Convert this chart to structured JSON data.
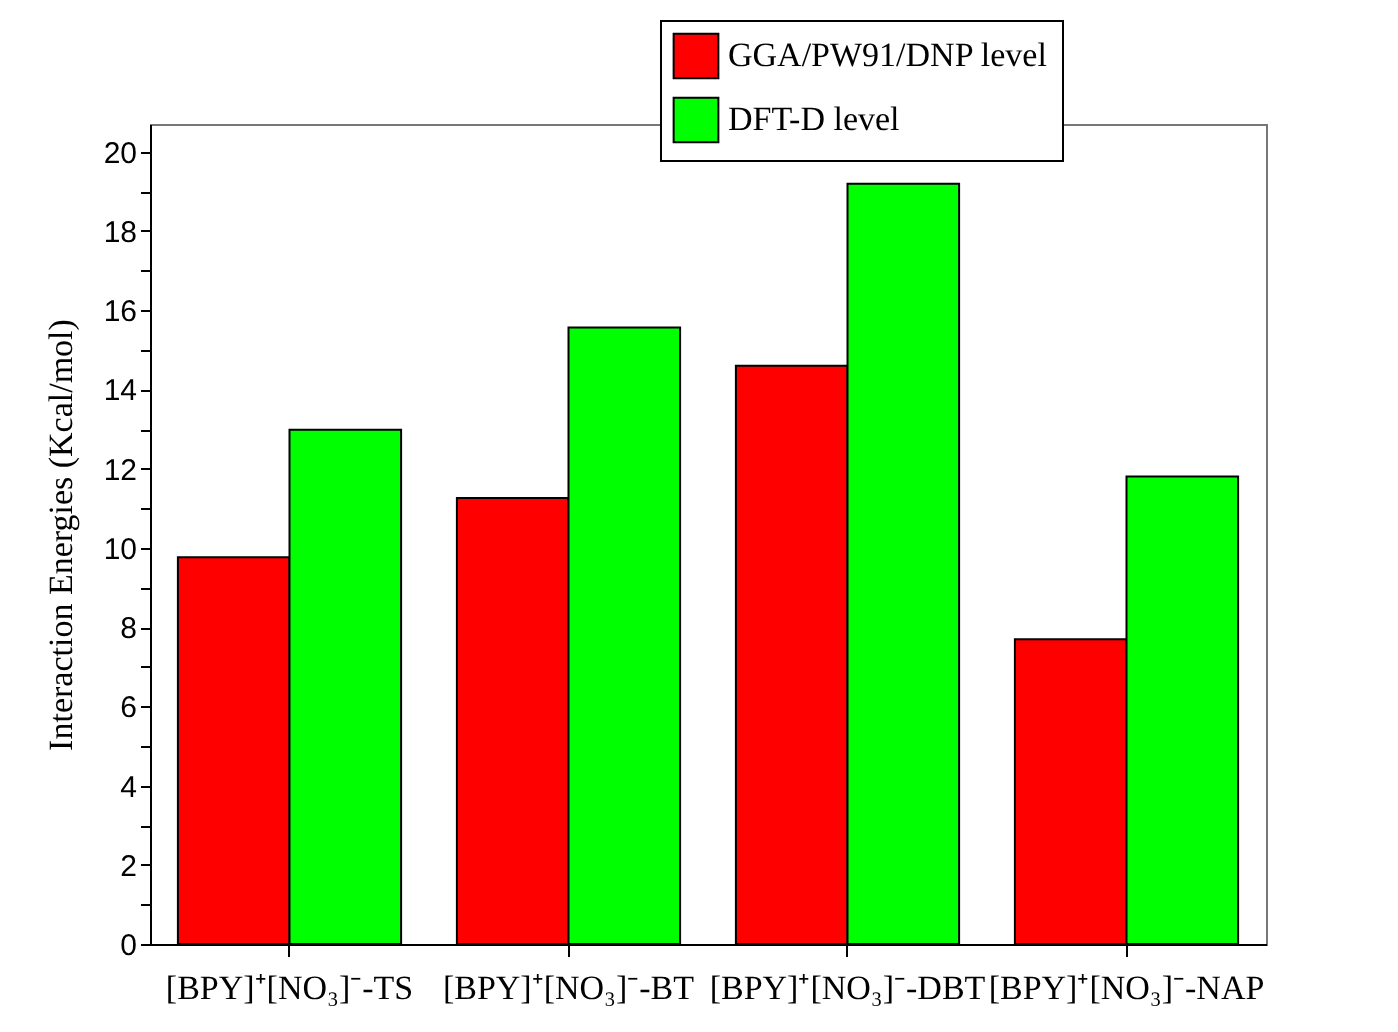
{
  "chart_data": {
    "type": "bar",
    "ylabel": "Interaction Energies (Kcal/mol)",
    "categories": [
      "[BPY]⁺[NO₃]⁻-TS",
      "[BPY]⁺[NO₃]⁻-BT",
      "[BPY]⁺[NO₃]⁻-DBT",
      "[BPY]⁺[NO₃]⁻-NAP"
    ],
    "series": [
      {
        "name": "GGA/PW91/DNP level",
        "color": "#ff0000",
        "values": [
          9.76,
          11.26,
          14.6,
          7.69
        ]
      },
      {
        "name": "DFT-D level",
        "color": "#00ff00",
        "values": [
          12.98,
          15.56,
          19.19,
          11.8
        ]
      }
    ],
    "ylim": [
      0,
      20.7
    ],
    "yticks": [
      0,
      {
        "value": 1,
        "label": null
      },
      2,
      {
        "value": 3,
        "label": null
      },
      4,
      {
        "value": 5,
        "label": null
      },
      6,
      {
        "value": 7,
        "label": null
      },
      8,
      {
        "value": 9,
        "label": null
      },
      10,
      {
        "value": 11,
        "label": null
      },
      12,
      {
        "value": 13,
        "label": null
      },
      14,
      {
        "value": 15,
        "label": null
      },
      16,
      {
        "value": 17,
        "label": null
      },
      18,
      {
        "value": 19,
        "label": null
      },
      20
    ],
    "grid": false,
    "legend": "top right"
  }
}
